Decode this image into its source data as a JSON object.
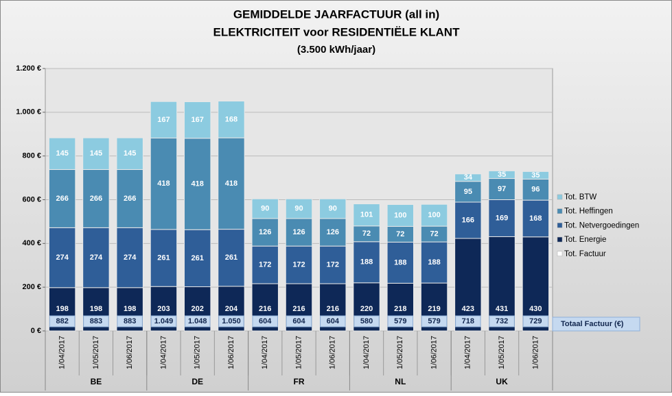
{
  "chart_data": {
    "type": "stacked-bar",
    "title": [
      "GEMIDDELDE JAARFACTUUR (all in)",
      "ELEKTRICITEIT voor RESIDENTIËLE KLANT",
      "(3.500 kWh/jaar)"
    ],
    "categories": [
      "1/04/2017",
      "1/05/2017",
      "1/06/2017",
      "1/04/2017",
      "1/05/2017",
      "1/06/2017",
      "1/04/2017",
      "1/05/2017",
      "1/06/2017",
      "1/04/2017",
      "1/05/2017",
      "1/06/2017",
      "1/04/2017",
      "1/05/2017",
      "1/06/2017"
    ],
    "groups": [
      "BE",
      "DE",
      "FR",
      "NL",
      "UK"
    ],
    "series": [
      {
        "name": "Tot. Energie",
        "color": "#0e2857",
        "values": [
          198,
          198,
          198,
          203,
          202,
          204,
          216,
          216,
          216,
          220,
          218,
          219,
          423,
          431,
          430
        ]
      },
      {
        "name": "Tot. Netvergoedingen",
        "color": "#2f5e98",
        "values": [
          274,
          274,
          274,
          261,
          261,
          261,
          172,
          172,
          172,
          188,
          188,
          188,
          166,
          169,
          168
        ]
      },
      {
        "name": "Tot. Heffingen",
        "color": "#4a8bb2",
        "values": [
          266,
          266,
          266,
          418,
          418,
          418,
          126,
          126,
          126,
          72,
          72,
          72,
          95,
          97,
          96
        ]
      },
      {
        "name": "Tot. BTW",
        "color": "#8ccbe0",
        "values": [
          145,
          145,
          145,
          167,
          167,
          168,
          90,
          90,
          90,
          101,
          100,
          100,
          34,
          35,
          35
        ]
      }
    ],
    "totals": {
      "name": "Tot. Factuur",
      "label": "Totaal Factuur (€)",
      "color": "#ffffff",
      "values": [
        882,
        883,
        883,
        1049,
        1048,
        1050,
        604,
        604,
        604,
        580,
        579,
        579,
        718,
        732,
        729
      ],
      "value_labels": [
        "882",
        "883",
        "883",
        "1.049",
        "1.048",
        "1.050",
        "604",
        "604",
        "604",
        "580",
        "579",
        "579",
        "718",
        "732",
        "729"
      ]
    },
    "ylim": [
      0,
      1200
    ],
    "yticks": [
      {
        "value": 0,
        "label": "0 €"
      },
      {
        "value": 200,
        "label": "200 €"
      },
      {
        "value": 400,
        "label": "400 €"
      },
      {
        "value": 600,
        "label": "600 €"
      },
      {
        "value": 800,
        "label": "800 €"
      },
      {
        "value": 1000,
        "label": "1.000 €"
      },
      {
        "value": 1200,
        "label": "1.200 €"
      }
    ],
    "grid": true
  }
}
